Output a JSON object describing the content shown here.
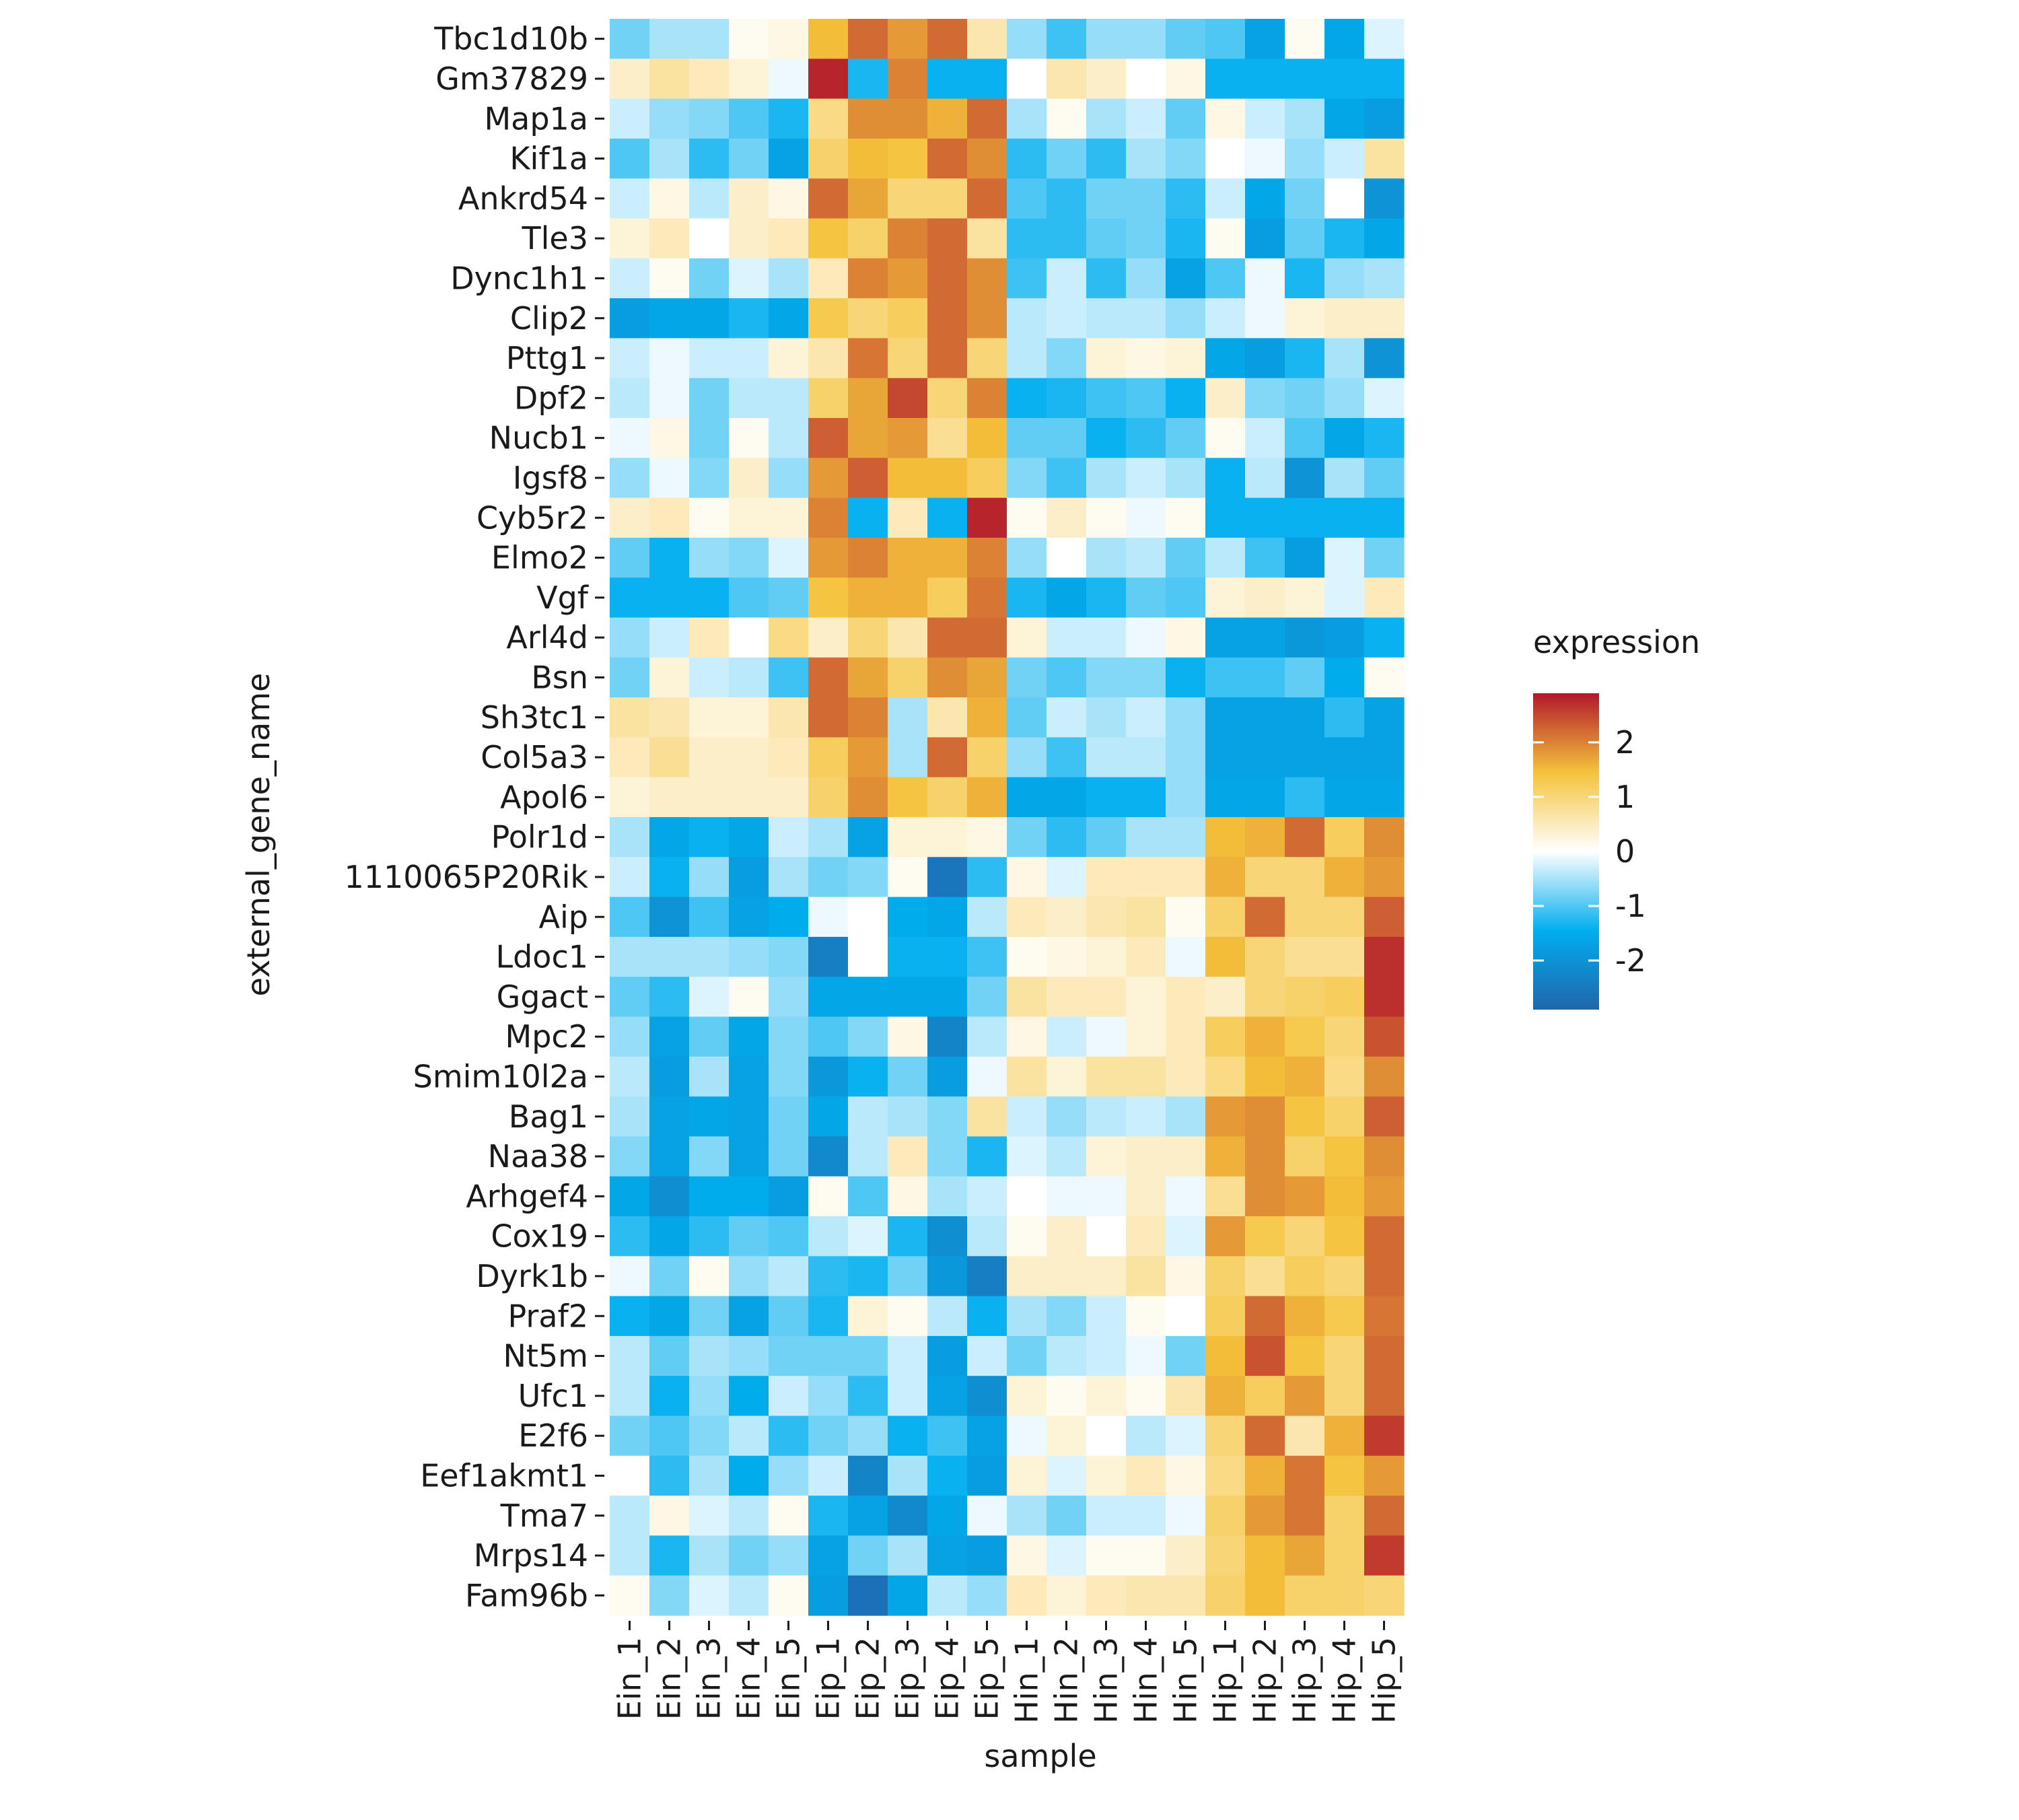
{
  "chart_data": {
    "type": "heatmap",
    "xlabel": "sample",
    "ylabel": "external_gene_name",
    "x": [
      "Ein_1",
      "Ein_2",
      "Ein_3",
      "Ein_4",
      "Ein_5",
      "Eip_1",
      "Eip_2",
      "Eip_3",
      "Eip_4",
      "Eip_5",
      "Hin_1",
      "Hin_2",
      "Hin_3",
      "Hin_4",
      "Hin_5",
      "Hip_1",
      "Hip_2",
      "Hip_3",
      "Hip_4",
      "Hip_5"
    ],
    "y": [
      "Tbc1d10b",
      "Gm37829",
      "Map1a",
      "Kif1a",
      "Ankrd54",
      "Tle3",
      "Dync1h1",
      "Clip2",
      "Pttg1",
      "Dpf2",
      "Nucb1",
      "Igsf8",
      "Cyb5r2",
      "Elmo2",
      "Vgf",
      "Arl4d",
      "Bsn",
      "Sh3tc1",
      "Col5a3",
      "Apol6",
      "Polr1d",
      "1110065P20Rik",
      "Aip",
      "Ldoc1",
      "Ggact",
      "Mpc2",
      "Smim10l2a",
      "Bag1",
      "Naa38",
      "Arhgef4",
      "Cox19",
      "Dyrk1b",
      "Praf2",
      "Nt5m",
      "Ufc1",
      "E2f6",
      "Eef1akmt1",
      "Tma7",
      "Mrps14",
      "Fam96b"
    ],
    "values": [
      [
        -0.8,
        -0.5,
        -0.5,
        0.1,
        0.2,
        1.5,
        2.2,
        1.8,
        2.2,
        0.6,
        -0.6,
        -1.1,
        -0.6,
        -0.6,
        -0.9,
        -1.0,
        -1.7,
        0.1,
        -1.6,
        -0.2
      ],
      [
        0.4,
        0.7,
        0.5,
        0.3,
        -0.1,
        2.8,
        -1.3,
        2.0,
        -1.4,
        -1.4,
        0.0,
        0.6,
        0.4,
        0.0,
        0.2,
        -1.4,
        -1.4,
        -1.4,
        -1.4,
        -1.4
      ],
      [
        -0.3,
        -0.6,
        -0.7,
        -1.0,
        -1.3,
        0.9,
        1.9,
        1.9,
        1.6,
        2.2,
        -0.5,
        0.1,
        -0.5,
        -0.3,
        -0.9,
        0.2,
        -0.3,
        -0.5,
        -1.6,
        -1.8
      ],
      [
        -1.0,
        -0.5,
        -1.2,
        -0.8,
        -1.7,
        1.1,
        1.5,
        1.4,
        2.2,
        1.9,
        -1.2,
        -0.8,
        -1.2,
        -0.5,
        -0.7,
        0.0,
        -0.1,
        -0.6,
        -0.3,
        0.7
      ],
      [
        -0.3,
        0.2,
        -0.4,
        0.4,
        0.2,
        2.2,
        1.7,
        1.0,
        1.0,
        2.2,
        -1.0,
        -1.2,
        -0.8,
        -0.8,
        -1.2,
        -0.3,
        -1.6,
        -0.8,
        0.0,
        -2.0
      ],
      [
        0.3,
        0.5,
        0.0,
        0.4,
        0.5,
        1.4,
        1.1,
        2.0,
        2.2,
        0.7,
        -1.2,
        -1.2,
        -0.9,
        -0.8,
        -1.3,
        0.1,
        -1.8,
        -0.9,
        -1.3,
        -1.6
      ],
      [
        -0.3,
        0.1,
        -0.8,
        -0.2,
        -0.5,
        0.5,
        2.0,
        1.8,
        2.2,
        1.9,
        -1.1,
        -0.3,
        -1.2,
        -0.6,
        -1.7,
        -1.0,
        -0.1,
        -1.3,
        -0.6,
        -0.5
      ],
      [
        -1.8,
        -1.6,
        -1.6,
        -1.3,
        -1.6,
        1.3,
        1.0,
        1.2,
        2.2,
        1.9,
        -0.4,
        -0.3,
        -0.4,
        -0.4,
        -0.6,
        -0.3,
        -0.1,
        0.3,
        0.4,
        0.4
      ],
      [
        -0.3,
        -0.1,
        -0.3,
        -0.3,
        0.3,
        0.6,
        2.1,
        1.0,
        2.2,
        1.0,
        -0.4,
        -0.7,
        0.3,
        0.2,
        0.3,
        -1.6,
        -1.8,
        -1.3,
        -0.5,
        -2.0
      ],
      [
        -0.4,
        -0.1,
        -0.8,
        -0.4,
        -0.4,
        1.1,
        1.7,
        2.5,
        1.0,
        2.0,
        -1.4,
        -1.3,
        -1.1,
        -1.0,
        -1.4,
        0.4,
        -0.7,
        -0.8,
        -0.6,
        -0.2
      ],
      [
        -0.1,
        0.2,
        -0.8,
        0.1,
        -0.4,
        2.3,
        1.7,
        1.8,
        0.8,
        1.5,
        -0.9,
        -0.9,
        -1.4,
        -1.2,
        -0.9,
        0.1,
        -0.3,
        -1.0,
        -1.6,
        -1.3
      ],
      [
        -0.6,
        -0.1,
        -0.7,
        0.4,
        -0.6,
        1.8,
        2.3,
        1.5,
        1.5,
        1.2,
        -0.7,
        -1.1,
        -0.5,
        -0.3,
        -0.5,
        -1.4,
        -0.4,
        -2.0,
        -0.5,
        -0.9
      ],
      [
        0.4,
        0.5,
        0.1,
        0.3,
        0.3,
        2.0,
        -1.4,
        0.5,
        -1.4,
        2.8,
        0.1,
        0.4,
        0.1,
        -0.1,
        0.1,
        -1.4,
        -1.4,
        -1.4,
        -1.4,
        -1.4
      ],
      [
        -0.9,
        -1.4,
        -0.6,
        -0.7,
        -0.2,
        1.8,
        2.0,
        1.6,
        1.6,
        2.0,
        -0.6,
        0.0,
        -0.5,
        -0.4,
        -0.9,
        -0.4,
        -1.1,
        -1.8,
        -0.2,
        -0.8
      ],
      [
        -1.4,
        -1.4,
        -1.4,
        -1.0,
        -0.9,
        1.4,
        1.6,
        1.6,
        1.2,
        2.1,
        -1.3,
        -1.6,
        -1.3,
        -0.9,
        -1.0,
        0.3,
        0.4,
        0.3,
        -0.2,
        0.5
      ],
      [
        -0.6,
        -0.3,
        0.5,
        0.0,
        0.9,
        0.4,
        1.0,
        0.6,
        2.2,
        2.2,
        0.3,
        -0.3,
        -0.3,
        -0.1,
        0.2,
        -1.7,
        -1.7,
        -1.9,
        -1.8,
        -1.4
      ],
      [
        -0.8,
        0.3,
        -0.3,
        -0.4,
        -1.1,
        2.2,
        1.7,
        1.1,
        1.9,
        1.7,
        -0.8,
        -1.0,
        -0.7,
        -0.7,
        -1.4,
        -1.1,
        -1.1,
        -0.9,
        -1.5,
        0.1
      ],
      [
        0.7,
        0.6,
        0.3,
        0.3,
        0.6,
        2.2,
        2.0,
        -0.5,
        0.6,
        1.6,
        -0.9,
        -0.3,
        -0.5,
        -0.3,
        -0.6,
        -1.7,
        -1.7,
        -1.7,
        -1.2,
        -1.7
      ],
      [
        0.5,
        0.8,
        0.4,
        0.4,
        0.5,
        1.2,
        1.8,
        -0.5,
        2.2,
        1.1,
        -0.6,
        -1.1,
        -0.4,
        -0.4,
        -0.6,
        -1.7,
        -1.7,
        -1.7,
        -1.7,
        -1.7
      ],
      [
        0.3,
        0.4,
        0.4,
        0.4,
        0.4,
        1.1,
        1.9,
        1.4,
        1.1,
        1.6,
        -1.6,
        -1.6,
        -1.4,
        -1.4,
        -0.6,
        -1.6,
        -1.6,
        -1.2,
        -1.6,
        -1.6
      ],
      [
        -0.5,
        -1.6,
        -1.4,
        -1.6,
        -0.3,
        -0.5,
        -1.7,
        0.3,
        0.3,
        0.2,
        -0.8,
        -1.2,
        -0.9,
        -0.5,
        -0.5,
        1.5,
        1.6,
        2.2,
        1.2,
        1.9
      ],
      [
        -0.3,
        -1.4,
        -0.6,
        -1.8,
        -0.5,
        -0.8,
        -0.7,
        0.1,
        -2.6,
        -1.2,
        0.2,
        -0.2,
        0.5,
        0.5,
        0.5,
        1.6,
        1.0,
        1.0,
        1.6,
        1.8
      ],
      [
        -1.0,
        -2.0,
        -1.1,
        -1.7,
        -1.5,
        -0.1,
        0.0,
        -1.5,
        -1.6,
        -0.4,
        0.5,
        0.4,
        0.6,
        0.7,
        0.1,
        1.1,
        2.2,
        1.0,
        1.0,
        2.3
      ],
      [
        -0.5,
        -0.5,
        -0.5,
        -0.6,
        -0.7,
        -2.4,
        0.0,
        -1.4,
        -1.4,
        -1.1,
        0.1,
        0.2,
        0.3,
        0.5,
        -0.1,
        1.5,
        1.0,
        0.8,
        0.8,
        2.7
      ],
      [
        -0.9,
        -1.2,
        -0.2,
        0.1,
        -0.6,
        -1.6,
        -1.6,
        -1.6,
        -1.6,
        -0.8,
        0.7,
        0.5,
        0.5,
        0.3,
        0.5,
        0.4,
        1.0,
        1.1,
        1.2,
        2.7
      ],
      [
        -0.6,
        -1.7,
        -0.9,
        -1.6,
        -0.7,
        -1.0,
        -0.7,
        0.2,
        -2.3,
        -0.4,
        0.2,
        -0.3,
        -0.1,
        0.3,
        0.5,
        1.2,
        1.6,
        1.3,
        1.0,
        2.4
      ],
      [
        -0.4,
        -1.8,
        -0.5,
        -1.7,
        -0.7,
        -1.9,
        -1.4,
        -0.8,
        -1.8,
        -0.1,
        0.7,
        0.3,
        0.7,
        0.7,
        0.5,
        0.9,
        1.5,
        1.6,
        0.9,
        1.9
      ],
      [
        -0.5,
        -1.7,
        -1.6,
        -1.7,
        -0.8,
        -1.6,
        -0.4,
        -0.5,
        -0.7,
        0.7,
        -0.3,
        -0.6,
        -0.4,
        -0.3,
        -0.5,
        1.8,
        1.9,
        1.4,
        1.1,
        2.3
      ],
      [
        -0.7,
        -1.7,
        -0.7,
        -1.7,
        -0.8,
        -2.2,
        -0.4,
        0.5,
        -0.7,
        -1.3,
        -0.2,
        -0.4,
        0.3,
        0.4,
        0.4,
        1.6,
        1.9,
        1.1,
        1.4,
        1.9
      ],
      [
        -1.6,
        -2.1,
        -1.5,
        -1.5,
        -1.8,
        0.1,
        -1.0,
        0.2,
        -0.5,
        -0.3,
        0.0,
        -0.1,
        -0.1,
        0.4,
        -0.1,
        0.8,
        1.9,
        1.8,
        1.5,
        1.8
      ],
      [
        -1.2,
        -1.6,
        -1.2,
        -0.9,
        -1.0,
        -0.4,
        -0.2,
        -1.3,
        -2.1,
        -0.4,
        0.1,
        0.4,
        0.0,
        0.5,
        -0.2,
        1.8,
        1.3,
        1.0,
        1.4,
        2.2
      ],
      [
        -0.1,
        -0.8,
        0.1,
        -0.6,
        -0.4,
        -1.2,
        -1.3,
        -0.8,
        -1.9,
        -2.4,
        0.4,
        0.4,
        0.4,
        0.7,
        0.2,
        1.1,
        0.8,
        1.2,
        1.0,
        2.2
      ],
      [
        -1.4,
        -1.6,
        -0.8,
        -1.7,
        -0.9,
        -1.3,
        0.3,
        0.1,
        -0.4,
        -1.4,
        -0.5,
        -0.7,
        -0.3,
        0.1,
        0.0,
        1.2,
        2.2,
        1.6,
        1.3,
        2.1
      ],
      [
        -0.4,
        -0.9,
        -0.5,
        -0.6,
        -0.8,
        -0.8,
        -0.8,
        -0.3,
        -1.8,
        -0.3,
        -0.8,
        -0.4,
        -0.3,
        -0.1,
        -0.8,
        1.5,
        2.4,
        1.4,
        1.0,
        2.2
      ],
      [
        -0.4,
        -1.4,
        -0.6,
        -1.5,
        -0.3,
        -0.6,
        -1.2,
        -0.3,
        -1.7,
        -2.1,
        0.3,
        0.1,
        0.3,
        0.1,
        0.6,
        1.6,
        1.2,
        1.8,
        1.0,
        2.2
      ],
      [
        -0.8,
        -1.0,
        -0.7,
        -0.4,
        -1.2,
        -0.8,
        -0.6,
        -1.4,
        -1.1,
        -1.7,
        -0.1,
        0.3,
        0.0,
        -0.4,
        -0.2,
        1.0,
        2.2,
        0.6,
        1.6,
        2.6
      ],
      [
        0.0,
        -1.2,
        -0.5,
        -1.5,
        -0.6,
        -0.3,
        -2.3,
        -0.5,
        -1.4,
        -1.8,
        0.3,
        -0.2,
        0.3,
        0.5,
        0.2,
        0.9,
        1.6,
        2.1,
        1.4,
        1.8
      ],
      [
        -0.4,
        0.2,
        -0.2,
        -0.4,
        0.1,
        -1.3,
        -1.7,
        -2.2,
        -1.6,
        -0.1,
        -0.5,
        -0.8,
        -0.3,
        -0.3,
        -0.1,
        1.1,
        1.8,
        2.1,
        1.1,
        2.2
      ],
      [
        -0.4,
        -1.3,
        -0.5,
        -0.8,
        -0.6,
        -1.7,
        -0.8,
        -0.5,
        -1.7,
        -1.8,
        0.2,
        -0.2,
        0.1,
        0.1,
        0.4,
        1.0,
        1.5,
        1.7,
        1.1,
        2.6
      ],
      [
        0.1,
        -0.7,
        -0.2,
        -0.4,
        0.1,
        -1.8,
        -2.7,
        -1.6,
        -0.4,
        -0.6,
        0.5,
        0.3,
        0.5,
        0.6,
        0.6,
        1.1,
        1.5,
        1.1,
        1.1,
        1.0
      ]
    ],
    "legend": {
      "title": "expression",
      "ticks": [
        "2",
        "1",
        "0",
        "-1",
        "-2"
      ],
      "tick_values": [
        2,
        1,
        0,
        -1,
        -2
      ],
      "range": [
        -2.9,
        2.9
      ],
      "colors": [
        "#2166ac",
        "#00aeef",
        "#ffffff",
        "#f5c33b",
        "#b2182b"
      ]
    },
    "grid": false
  }
}
